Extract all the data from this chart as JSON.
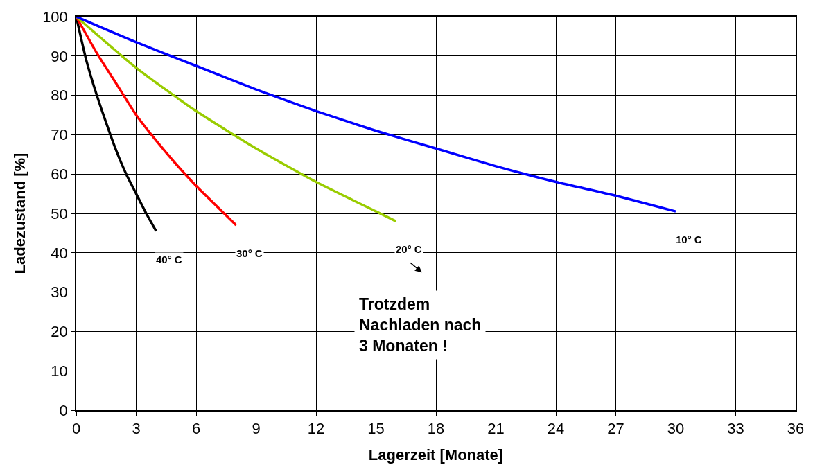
{
  "chart_data": {
    "type": "line",
    "xlabel": "Lagerzeit [Monate]",
    "ylabel": "Ladezustand [%]",
    "xlim": [
      0,
      36
    ],
    "xticks": [
      0,
      3,
      6,
      9,
      12,
      15,
      18,
      21,
      24,
      27,
      30,
      33,
      36
    ],
    "ylim": [
      0,
      100
    ],
    "yticks": [
      0,
      10,
      20,
      30,
      40,
      50,
      60,
      70,
      80,
      90,
      100
    ],
    "grid": true,
    "legend": false,
    "marker": "none",
    "line_style": "solid",
    "series": [
      {
        "name": "40° C",
        "color": "#000000",
        "x": [
          0,
          0.5,
          1,
          1.5,
          2,
          2.5,
          3,
          3.5,
          4
        ],
        "values": [
          100,
          89,
          80.5,
          73,
          66,
          60,
          55,
          50,
          45.5
        ]
      },
      {
        "name": "30° C",
        "color": "#ff0000",
        "x": [
          0,
          1,
          2,
          3,
          4,
          5,
          6,
          7,
          8
        ],
        "values": [
          100,
          91,
          83,
          75,
          68.5,
          62.5,
          57,
          52,
          47
        ]
      },
      {
        "name": "20° C",
        "color": "#99cc00",
        "x": [
          0,
          3,
          6,
          9,
          12,
          15,
          16
        ],
        "values": [
          100,
          87,
          76,
          66.5,
          58,
          50.5,
          48
        ]
      },
      {
        "name": "10° C",
        "color": "#0000ff",
        "x": [
          0,
          3,
          6,
          9,
          12,
          15,
          18,
          21,
          24,
          27,
          30
        ],
        "values": [
          100,
          93.5,
          87.5,
          81.5,
          76,
          71,
          66.5,
          62,
          58,
          54.5,
          50.5
        ]
      }
    ],
    "annotations": [
      "Trotzdem\nNachladen nach\n3 Monaten !"
    ]
  }
}
